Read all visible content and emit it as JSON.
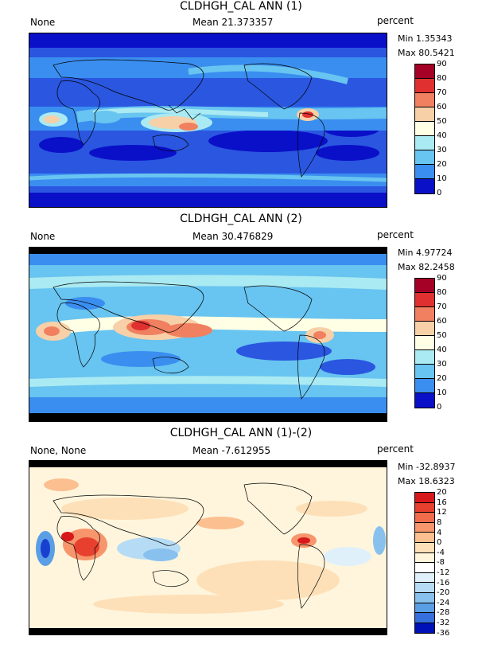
{
  "panels": [
    {
      "title": "CLDHGH_CAL ANN (1)",
      "left": "None",
      "mean": "Mean 21.373357",
      "units": "percent",
      "min": "Min 1.35343",
      "max": "Max 80.5421",
      "colorbar": {
        "labels": [
          "90",
          "80",
          "70",
          "60",
          "50",
          "40",
          "30",
          "20",
          "10",
          "0"
        ],
        "colors": [
          "#a50026",
          "#e03030",
          "#f08060",
          "#f7d0a8",
          "#ffffe6",
          "#aaeaf2",
          "#68c4f0",
          "#3a8ef0",
          "#2a56e0",
          "#0a10c8"
        ]
      }
    },
    {
      "title": "CLDHGH_CAL ANN (2)",
      "left": "None",
      "mean": "Mean 30.476829",
      "units": "percent",
      "min": "Min 4.97724",
      "max": "Max 82.2458",
      "colorbar": {
        "labels": [
          "90",
          "80",
          "70",
          "60",
          "50",
          "40",
          "30",
          "20",
          "10",
          "0"
        ],
        "colors": [
          "#a50026",
          "#e03030",
          "#f08060",
          "#f7d0a8",
          "#ffffe6",
          "#aaeaf2",
          "#68c4f0",
          "#3a8ef0",
          "#2a56e0",
          "#0a10c8"
        ]
      }
    },
    {
      "title": "CLDHGH_CAL ANN (1)-(2)",
      "left": "None, None",
      "mean": "Mean -7.612955",
      "units": "percent",
      "min": "Min -32.8937",
      "max": "Max 18.6323",
      "colorbar": {
        "labels": [
          "20",
          "16",
          "12",
          "8",
          "4",
          "0",
          "-4",
          "-8",
          "-12",
          "-16",
          "-20",
          "-24",
          "-28",
          "-32",
          "-36"
        ],
        "colors": [
          "#d7191c",
          "#e8402e",
          "#f26b4a",
          "#f7956c",
          "#fbbf90",
          "#fde0b8",
          "#fff5dc",
          "#ffffff",
          "#dff0fb",
          "#b6dcf5",
          "#88c1ee",
          "#5a9ee6",
          "#3570de",
          "#1840cf",
          "#0010b8"
        ]
      }
    }
  ]
}
